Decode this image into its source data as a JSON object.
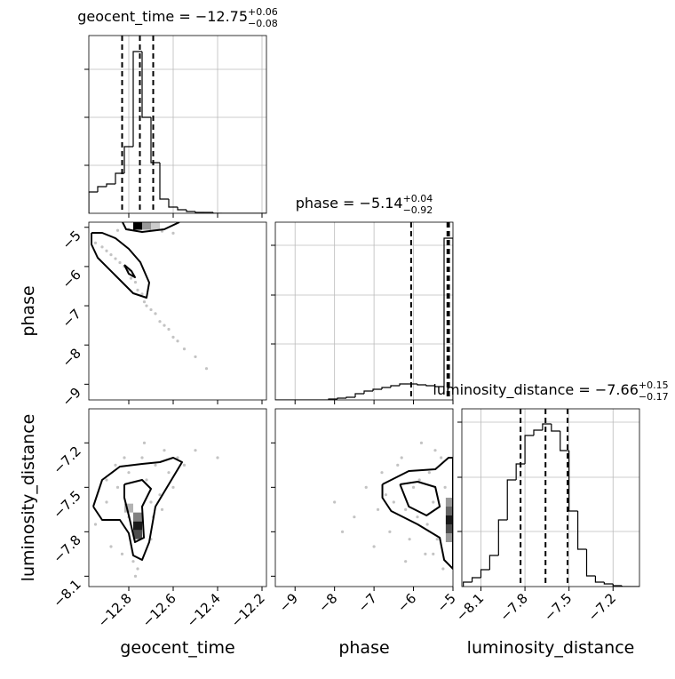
{
  "chart_data": [
    {
      "type": "histogram",
      "title": "geocent_time = −12.75",
      "title_upper": "+0.06",
      "title_lower": "−0.08",
      "bins": [
        -12.98,
        -12.94,
        -12.9,
        -12.86,
        -12.82,
        -12.78,
        -12.74,
        -12.7,
        -12.66,
        -12.62,
        -12.58,
        -12.54,
        -12.5,
        -12.46,
        -12.42,
        -12.38,
        -12.34,
        -12.3,
        -12.26,
        -12.22,
        -12.18
      ],
      "counts": [
        24,
        30,
        33,
        45,
        75,
        182,
        108,
        57,
        16,
        7,
        4,
        2,
        1,
        1,
        0,
        0,
        0,
        0,
        0,
        0
      ],
      "quantiles": [
        -12.83,
        -12.75,
        -12.69
      ],
      "xlim": [
        -12.98,
        -12.18
      ],
      "xticks": [
        -12.8,
        -12.6,
        -12.4,
        -12.2
      ],
      "ylim": [
        0,
        200
      ],
      "yticks": [
        54,
        108,
        162
      ],
      "grid": true
    },
    {
      "type": "scatter",
      "x": [
        -12.95,
        -12.92,
        -12.9,
        -12.88,
        -12.86,
        -12.84,
        -12.82,
        -12.8,
        -12.79,
        -12.77,
        -12.76,
        -12.74,
        -12.73,
        -12.72,
        -12.7,
        -12.68,
        -12.66,
        -12.64,
        -12.62,
        -12.6,
        -12.58,
        -12.55,
        -12.5,
        -12.45,
        -12.8,
        -12.75,
        -12.7,
        -12.65,
        -12.6,
        -12.85
      ],
      "y": [
        -5.4,
        -5.5,
        -5.6,
        -5.7,
        -5.8,
        -5.9,
        -6.0,
        -6.1,
        -6.3,
        -6.4,
        -6.6,
        -6.7,
        -6.9,
        -7.0,
        -7.1,
        -7.2,
        -7.4,
        -7.5,
        -7.6,
        -7.8,
        -7.9,
        -8.1,
        -8.3,
        -8.6,
        -5.05,
        -5.02,
        -5.05,
        -5.1,
        -5.15,
        -5.08
      ],
      "density": {
        "x": [
          -12.76,
          -12.72,
          -12.68
        ],
        "y": [
          -4.95,
          -4.95,
          -4.95
        ],
        "values": [
          1.0,
          0.4,
          0.2
        ]
      },
      "contours": [
        {
          "x": [
            -12.968,
            -12.92,
            -12.86,
            -12.8,
            -12.748,
            -12.708,
            -12.72,
            -12.78,
            -12.86,
            -12.94,
            -12.968,
            -12.968
          ],
          "y": [
            -5.142,
            -5.142,
            -5.278,
            -5.55,
            -5.889,
            -6.41,
            -6.795,
            -6.682,
            -6.229,
            -5.776,
            -5.436,
            -5.142
          ]
        },
        {
          "x": [
            -12.828,
            -12.812,
            -12.74,
            -12.64,
            -12.572
          ],
          "y": [
            -4.87,
            -5.051,
            -5.119,
            -5.051,
            -4.87
          ]
        },
        {
          "x": [
            -12.82,
            -12.788,
            -12.772,
            -12.8,
            -12.82
          ],
          "y": [
            -5.957,
            -6.116,
            -6.274,
            -6.184,
            -5.957
          ]
        }
      ],
      "y_label": "phase",
      "xlim": [
        -12.98,
        -12.18
      ],
      "xticks": [
        -12.8,
        -12.6,
        -12.4,
        -12.2
      ],
      "ylim": [
        -9.4,
        -4.87
      ],
      "yticks": [
        {
          "value": -5,
          "label": "−5"
        },
        {
          "value": -6,
          "label": "−6"
        },
        {
          "value": -7,
          "label": "−7"
        },
        {
          "value": -8,
          "label": "−8"
        },
        {
          "value": -9,
          "label": "−9"
        }
      ]
    },
    {
      "type": "histogram",
      "title": "phase = −5.14",
      "title_upper": "+0.04",
      "title_lower": "−0.92",
      "bins": [
        -9.5,
        -9.275,
        -9.05,
        -8.825,
        -8.6,
        -8.375,
        -8.15,
        -7.925,
        -7.7,
        -7.475,
        -7.25,
        -7.025,
        -6.8,
        -6.575,
        -6.35,
        -6.125,
        -5.9,
        -5.675,
        -5.45,
        -5.225,
        -5.0
      ],
      "counts": [
        0,
        0,
        0,
        0,
        0,
        0,
        1,
        2,
        3,
        7,
        10,
        12,
        14,
        16,
        18,
        18,
        17,
        16,
        15,
        182
      ],
      "quantiles": [
        -6.06,
        -5.14,
        -5.1
      ],
      "xlim": [
        -9.5,
        -5.0
      ],
      "xticks": [
        -9,
        -8,
        -7,
        -6,
        -5
      ],
      "ylim": [
        0,
        200
      ],
      "yticks": [
        63,
        118,
        174
      ],
      "grid": true
    },
    {
      "type": "scatter",
      "x": [
        -12.95,
        -12.9,
        -12.88,
        -12.85,
        -12.83,
        -12.8,
        -12.78,
        -12.76,
        -12.74,
        -12.72,
        -12.7,
        -12.68,
        -12.66,
        -12.64,
        -12.62,
        -12.6,
        -12.58,
        -12.8,
        -12.75,
        -12.7,
        -12.9,
        -12.86,
        -12.82,
        -12.77,
        -12.73,
        -12.69,
        -12.65,
        -12.55,
        -12.5,
        -12.4
      ],
      "y": [
        -7.75,
        -7.6,
        -7.9,
        -7.5,
        -7.95,
        -7.4,
        -8.0,
        -8.05,
        -7.3,
        -7.45,
        -7.85,
        -7.35,
        -7.55,
        -7.25,
        -7.4,
        -7.5,
        -7.3,
        -7.7,
        -7.8,
        -7.6,
        -7.45,
        -7.35,
        -7.3,
        -8.1,
        -7.2,
        -7.7,
        -7.65,
        -7.35,
        -7.25,
        -7.3
      ],
      "density": {
        "x": [
          -12.76,
          -12.76,
          -12.76,
          -12.8
        ],
        "y": [
          -7.7,
          -7.76,
          -7.82,
          -7.64
        ],
        "values": [
          0.5,
          0.9,
          0.7,
          0.3
        ]
      },
      "contours": [
        {
          "x": [
            -12.96,
            -12.92,
            -12.84,
            -12.74,
            -12.66,
            -12.6,
            -12.56,
            -12.62,
            -12.68,
            -12.708,
            -12.74,
            -12.78,
            -12.8,
            -12.84,
            -12.92,
            -12.96
          ],
          "y": [
            -7.63,
            -7.45,
            -7.36,
            -7.342,
            -7.33,
            -7.3,
            -7.33,
            -7.48,
            -7.63,
            -7.87,
            -7.99,
            -7.96,
            -7.81,
            -7.72,
            -7.72,
            -7.63
          ]
        },
        {
          "x": [
            -12.82,
            -12.74,
            -12.7,
            -12.74,
            -12.732,
            -12.772,
            -12.8,
            -12.82,
            -12.82
          ],
          "y": [
            -7.48,
            -7.45,
            -7.51,
            -7.63,
            -7.84,
            -7.87,
            -7.69,
            -7.57,
            -7.48
          ]
        }
      ],
      "x_label": "geocent_time",
      "y_label": "luminosity_distance",
      "xlim": [
        -12.98,
        -12.18
      ],
      "xticks": [
        {
          "value": -12.8,
          "label": "−12.8"
        },
        {
          "value": -12.6,
          "label": "−12.6"
        },
        {
          "value": -12.4,
          "label": "−12.4"
        },
        {
          "value": -12.2,
          "label": "−12.2"
        }
      ],
      "ylim": [
        -8.17,
        -6.97
      ],
      "yticks": [
        {
          "value": -7.2,
          "label": "−7.2"
        },
        {
          "value": -7.5,
          "label": "−7.5"
        },
        {
          "value": -7.8,
          "label": "−7.8"
        },
        {
          "value": -8.1,
          "label": "−8.1"
        }
      ]
    },
    {
      "type": "scatter",
      "x": [
        -7.5,
        -7.2,
        -7.0,
        -6.8,
        -6.6,
        -6.5,
        -6.3,
        -6.2,
        -6.0,
        -5.9,
        -5.8,
        -5.7,
        -5.6,
        -5.5,
        -5.4,
        -5.3,
        -5.2,
        -5.1,
        -6.9,
        -6.4,
        -6.1,
        -5.85,
        -5.65,
        -5.45,
        -5.25,
        -8.0,
        -7.8,
        -6.7,
        -6.2,
        -5.5
      ],
      "y": [
        -7.7,
        -7.5,
        -7.9,
        -7.4,
        -7.8,
        -7.6,
        -7.3,
        -8.0,
        -7.5,
        -7.7,
        -7.2,
        -7.95,
        -7.4,
        -7.6,
        -7.85,
        -7.3,
        -7.5,
        -7.7,
        -7.65,
        -7.35,
        -7.85,
        -7.45,
        -7.75,
        -7.25,
        -8.05,
        -7.6,
        -7.8,
        -7.55,
        -7.65,
        -7.95
      ],
      "density": {
        "x": [
          -5.07,
          -5.07,
          -5.07,
          -5.07,
          -5.07
        ],
        "y": [
          -7.6,
          -7.66,
          -7.72,
          -7.78,
          -7.84
        ],
        "values": [
          0.4,
          0.6,
          0.9,
          0.7,
          0.4
        ]
      },
      "contours": [
        {
          "x": [
            -6.788,
            -6.118,
            -5.447,
            -5.112,
            -5.0,
            -5.0,
            -5.223,
            -5.335,
            -5.894,
            -6.565,
            -6.788,
            -6.788
          ],
          "y": [
            -7.48,
            -7.39,
            -7.378,
            -7.3,
            -7.3,
            -8.05,
            -7.99,
            -7.84,
            -7.75,
            -7.66,
            -7.57,
            -7.48
          ]
        },
        {
          "x": [
            -6.341,
            -5.894,
            -5.447,
            -5.335,
            -5.67,
            -6.118,
            -6.341
          ],
          "y": [
            -7.48,
            -7.462,
            -7.498,
            -7.63,
            -7.69,
            -7.63,
            -7.48
          ]
        }
      ],
      "x_label": "phase",
      "xlim": [
        -9.5,
        -5.0
      ],
      "xticks": [
        {
          "value": -9,
          "label": "−9"
        },
        {
          "value": -8,
          "label": "−8"
        },
        {
          "value": -7,
          "label": "−7"
        },
        {
          "value": -6,
          "label": "−6"
        },
        {
          "value": -5,
          "label": "−5"
        }
      ],
      "ylim": [
        -8.17,
        -6.97
      ],
      "yticks": [
        -7.2,
        -7.5,
        -7.8,
        -8.1
      ]
    },
    {
      "type": "histogram",
      "title": "luminosity_distance = −7.66",
      "title_upper": "+0.15",
      "title_lower": "−0.17",
      "bins": [
        -8.22,
        -8.16,
        -8.1,
        -8.04,
        -7.98,
        -7.92,
        -7.86,
        -7.8,
        -7.74,
        -7.68,
        -7.62,
        -7.56,
        -7.5,
        -7.44,
        -7.38,
        -7.32,
        -7.26,
        -7.2,
        -7.14,
        -7.08,
        -7.02
      ],
      "counts": [
        5,
        10,
        19,
        35,
        75,
        120,
        138,
        170,
        176,
        183,
        175,
        153,
        85,
        42,
        12,
        5,
        3,
        1,
        0,
        0
      ],
      "quantiles": [
        -7.83,
        -7.66,
        -7.51
      ],
      "x_label": "luminosity_distance",
      "xlim": [
        -8.23,
        -7.02
      ],
      "xticks": [
        {
          "value": -8.1,
          "label": "−8.1"
        },
        {
          "value": -7.8,
          "label": "−7.8"
        },
        {
          "value": -7.5,
          "label": "−7.5"
        },
        {
          "value": -7.2,
          "label": "−7.2"
        }
      ],
      "ylim": [
        0,
        200
      ],
      "yticks": [
        62,
        123,
        185
      ],
      "grid": true
    }
  ]
}
